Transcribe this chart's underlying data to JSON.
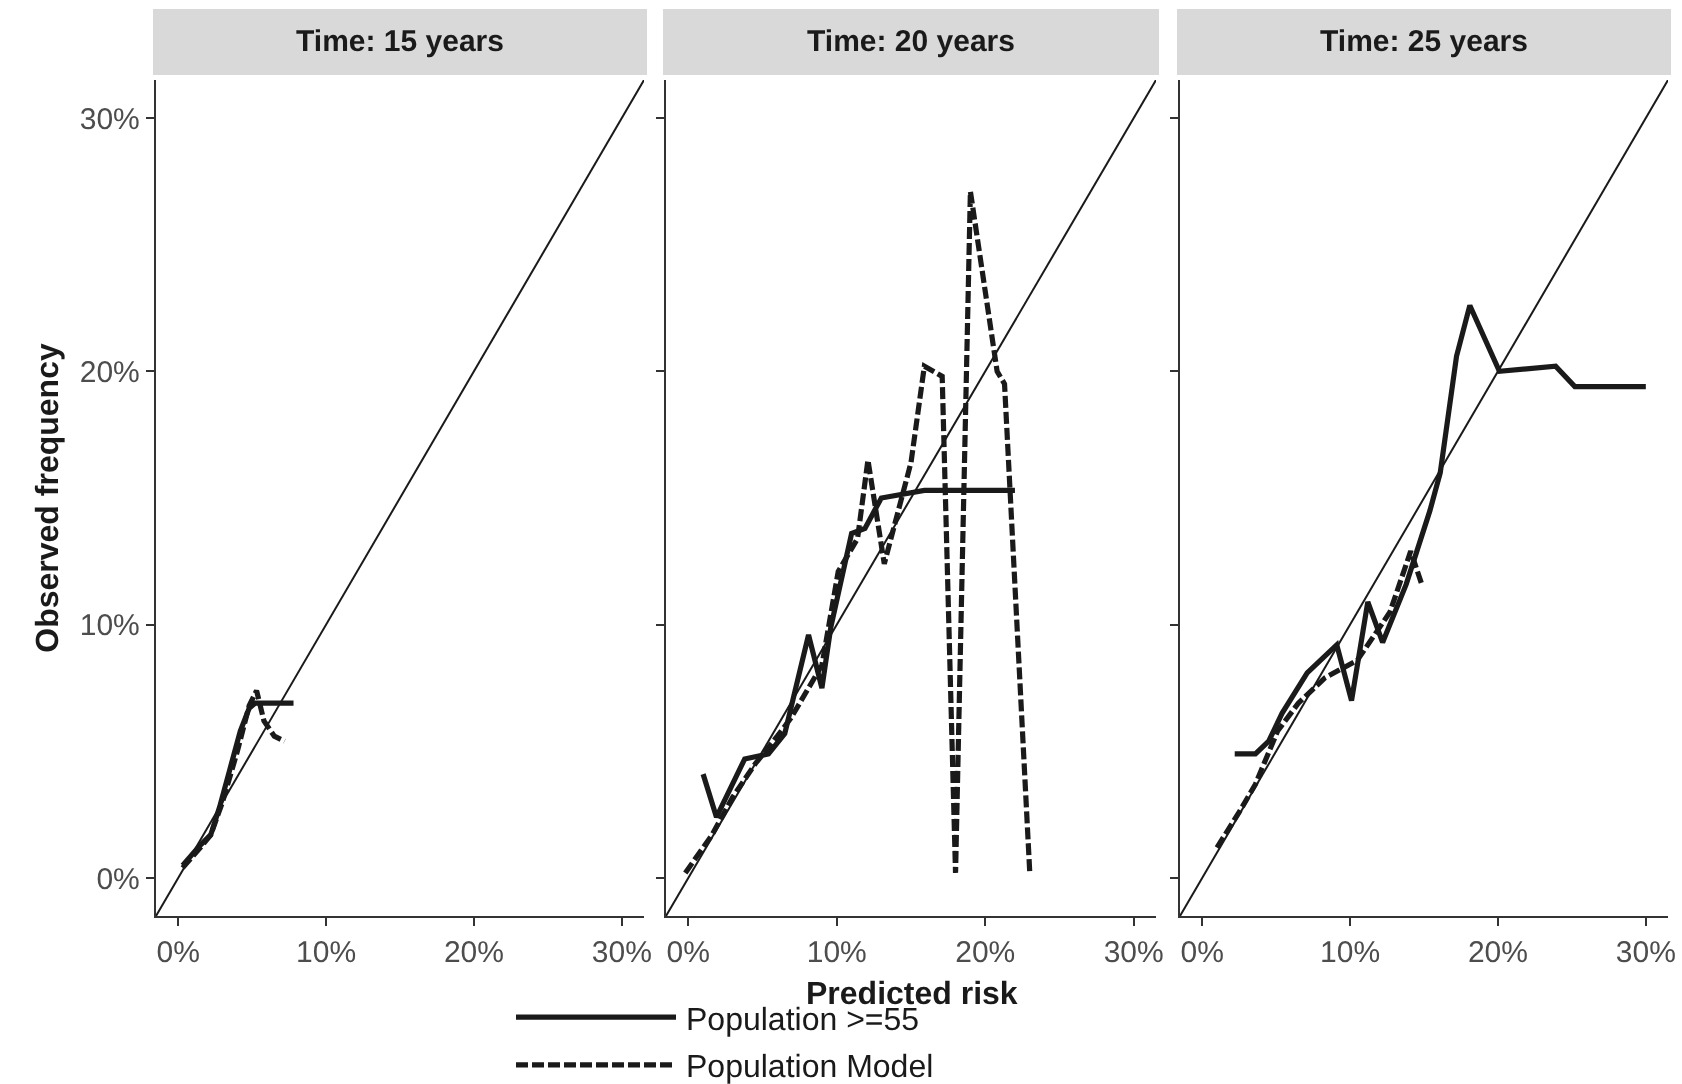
{
  "chart_data": [
    {
      "type": "line",
      "title": "Time: 15 years",
      "ylabel": "Observed frequency",
      "xlim": [
        -1.5,
        31.5
      ],
      "ylim": [
        -1.5,
        31.5
      ],
      "xticks": [
        {
          "value": 0,
          "label": "0%"
        },
        {
          "value": 10,
          "label": "10%"
        },
        {
          "value": 20,
          "label": "20%"
        },
        {
          "value": 30,
          "label": "30%"
        }
      ],
      "yticks": [
        {
          "value": 0,
          "label": "0%"
        },
        {
          "value": 10,
          "label": "10%"
        },
        {
          "value": 20,
          "label": "20%"
        },
        {
          "value": 30,
          "label": "30%"
        }
      ],
      "grid": false,
      "legend": false,
      "series": [
        {
          "color": "#1a1a1a",
          "line_style": "solid",
          "x": [
            -1.5,
            31.5
          ],
          "values": [
            -1.5,
            31.5
          ]
        },
        {
          "color": "#1a1a1a",
          "line_style": "solid",
          "x": [
            0.3,
            1.5,
            2.2,
            2.8,
            3.5,
            4.2,
            4.8,
            5.2,
            7.8
          ],
          "values": [
            0.5,
            1.3,
            1.7,
            2.8,
            4.3,
            5.8,
            6.7,
            6.9,
            6.9
          ]
        },
        {
          "color": "#1a1a1a",
          "line_style": "dashed",
          "x": [
            0.3,
            1.5,
            2.2,
            3,
            4,
            4.8,
            5.3,
            5.8,
            6.5,
            7.2
          ],
          "values": [
            0.4,
            1.2,
            1.7,
            3,
            5,
            6.8,
            7.4,
            6.2,
            5.6,
            5.4
          ]
        }
      ]
    },
    {
      "type": "line",
      "title": "Time: 20 years",
      "xlabel": "Predicted risk",
      "xlim": [
        -1.5,
        31.5
      ],
      "ylim": [
        -1.5,
        31.5
      ],
      "xticks": [
        {
          "value": 0,
          "label": "0%"
        },
        {
          "value": 10,
          "label": "10%"
        },
        {
          "value": 20,
          "label": "20%"
        },
        {
          "value": 30,
          "label": "30%"
        }
      ],
      "yticks": [
        {
          "value": 0,
          "label": null
        },
        {
          "value": 10,
          "label": null
        },
        {
          "value": 20,
          "label": null
        },
        {
          "value": 30,
          "label": null
        }
      ],
      "grid": false,
      "legend": "bottom",
      "tick_labels": "x",
      "series": [
        {
          "color": "#1a1a1a",
          "line_style": "solid",
          "x": [
            -1.5,
            31.5
          ],
          "values": [
            -1.5,
            31.5
          ]
        },
        {
          "name": "Population >=55",
          "color": "#1a1a1a",
          "line_style": "solid",
          "x": [
            1.0,
            1.9,
            3.8,
            5.4,
            6.5,
            8.1,
            9.0,
            9.6,
            11.0,
            11.9,
            13.0,
            15.9,
            22.0
          ],
          "values": [
            4.1,
            2.4,
            4.7,
            4.9,
            5.7,
            9.6,
            7.5,
            9.9,
            13.6,
            13.8,
            15.0,
            15.3,
            15.3
          ]
        },
        {
          "name": "Population Model",
          "color": "#1a1a1a",
          "line_style": "dashed",
          "x": [
            -0.2,
            1.6,
            3,
            4.5,
            6,
            6.9,
            9,
            10.1,
            11.4,
            12.1,
            13.2,
            15,
            15.9,
            17.1,
            18,
            19,
            20.8,
            21.3,
            23
          ],
          "values": [
            0.2,
            1.7,
            3.2,
            4.5,
            5.6,
            6.3,
            8.4,
            12.1,
            13.4,
            16.5,
            12.4,
            16.4,
            20.2,
            19.8,
            0.2,
            27.1,
            20.0,
            19.5,
            0.2
          ]
        }
      ]
    },
    {
      "type": "line",
      "title": "Time: 25 years",
      "xlim": [
        -1.5,
        31.5
      ],
      "ylim": [
        -1.5,
        31.5
      ],
      "xticks": [
        {
          "value": 0,
          "label": "0%"
        },
        {
          "value": 10,
          "label": "10%"
        },
        {
          "value": 20,
          "label": "20%"
        },
        {
          "value": 30,
          "label": "30%"
        }
      ],
      "yticks": [
        {
          "value": 0,
          "label": null
        },
        {
          "value": 10,
          "label": null
        },
        {
          "value": 20,
          "label": null
        },
        {
          "value": 30,
          "label": null
        }
      ],
      "grid": false,
      "legend": false,
      "tick_labels": "x",
      "series": [
        {
          "color": "#1a1a1a",
          "line_style": "solid",
          "x": [
            -1.5,
            31.5
          ],
          "values": [
            -1.5,
            31.5
          ]
        },
        {
          "color": "#1a1a1a",
          "line_style": "solid",
          "x": [
            2.2,
            3.6,
            4.5,
            5.4,
            7.1,
            9.1,
            10.1,
            11.2,
            12.2,
            13.8,
            15.4,
            16.1,
            17.2,
            18.1,
            20.1,
            23.9,
            25.2,
            30.0
          ],
          "values": [
            4.9,
            4.9,
            5.4,
            6.5,
            8.1,
            9.2,
            7.0,
            10.9,
            9.3,
            11.6,
            14.5,
            16.0,
            20.6,
            22.6,
            20.0,
            20.2,
            19.4,
            19.4
          ]
        },
        {
          "color": "#1a1a1a",
          "line_style": "dashed",
          "x": [
            1.0,
            2.5,
            3.6,
            5.1,
            6.5,
            8.3,
            10.5,
            12.7,
            14.1,
            14.9
          ],
          "values": [
            1.2,
            2.6,
            3.7,
            5.8,
            6.9,
            7.9,
            8.6,
            10.5,
            12.9,
            11.5
          ]
        }
      ]
    }
  ]
}
